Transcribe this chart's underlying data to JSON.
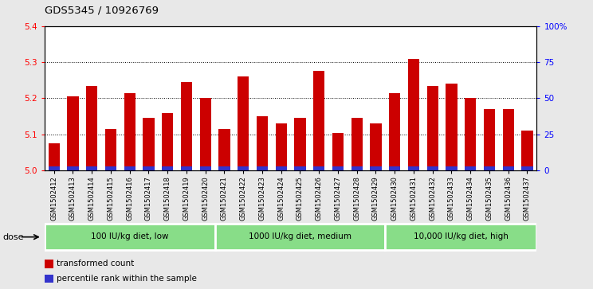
{
  "title": "GDS5345 / 10926769",
  "samples": [
    "GSM1502412",
    "GSM1502413",
    "GSM1502414",
    "GSM1502415",
    "GSM1502416",
    "GSM1502417",
    "GSM1502418",
    "GSM1502419",
    "GSM1502420",
    "GSM1502421",
    "GSM1502422",
    "GSM1502423",
    "GSM1502424",
    "GSM1502425",
    "GSM1502426",
    "GSM1502427",
    "GSM1502428",
    "GSM1502429",
    "GSM1502430",
    "GSM1502431",
    "GSM1502432",
    "GSM1502433",
    "GSM1502434",
    "GSM1502435",
    "GSM1502436",
    "GSM1502437"
  ],
  "red_values": [
    5.075,
    5.205,
    5.235,
    5.115,
    5.215,
    5.145,
    5.16,
    5.245,
    5.2,
    5.115,
    5.26,
    5.15,
    5.13,
    5.145,
    5.275,
    5.105,
    5.145,
    5.13,
    5.215,
    5.31,
    5.235,
    5.24,
    5.2,
    5.17,
    5.17,
    5.11
  ],
  "blue_percentiles": [
    3,
    8,
    9,
    5,
    8,
    6,
    7,
    9,
    7,
    5,
    9,
    6,
    5,
    6,
    9,
    4,
    6,
    5,
    8,
    10,
    8,
    8,
    7,
    6,
    6,
    4
  ],
  "base": 5.0,
  "ylim_left": [
    5.0,
    5.4
  ],
  "ylim_right": [
    0,
    100
  ],
  "yticks_left": [
    5.0,
    5.1,
    5.2,
    5.3,
    5.4
  ],
  "yticks_right": [
    0,
    25,
    50,
    75,
    100
  ],
  "ytick_labels_right": [
    "0",
    "25",
    "50",
    "75",
    "100%"
  ],
  "groups": [
    {
      "label": "100 IU/kg diet, low",
      "start": 0,
      "end": 9
    },
    {
      "label": "1000 IU/kg diet, medium",
      "start": 9,
      "end": 18
    },
    {
      "label": "10,000 IU/kg diet, high",
      "start": 18,
      "end": 26
    }
  ],
  "bar_color": "#cc0000",
  "blue_color": "#3333cc",
  "fig_bg": "#e8e8e8",
  "plot_bg": "#ffffff",
  "group_color": "#88dd88",
  "group_border": "#ffffff",
  "grid_color": "#555555",
  "dose_label": "dose",
  "legend_items": [
    {
      "color": "#cc0000",
      "label": "transformed count"
    },
    {
      "color": "#3333cc",
      "label": "percentile rank within the sample"
    }
  ]
}
